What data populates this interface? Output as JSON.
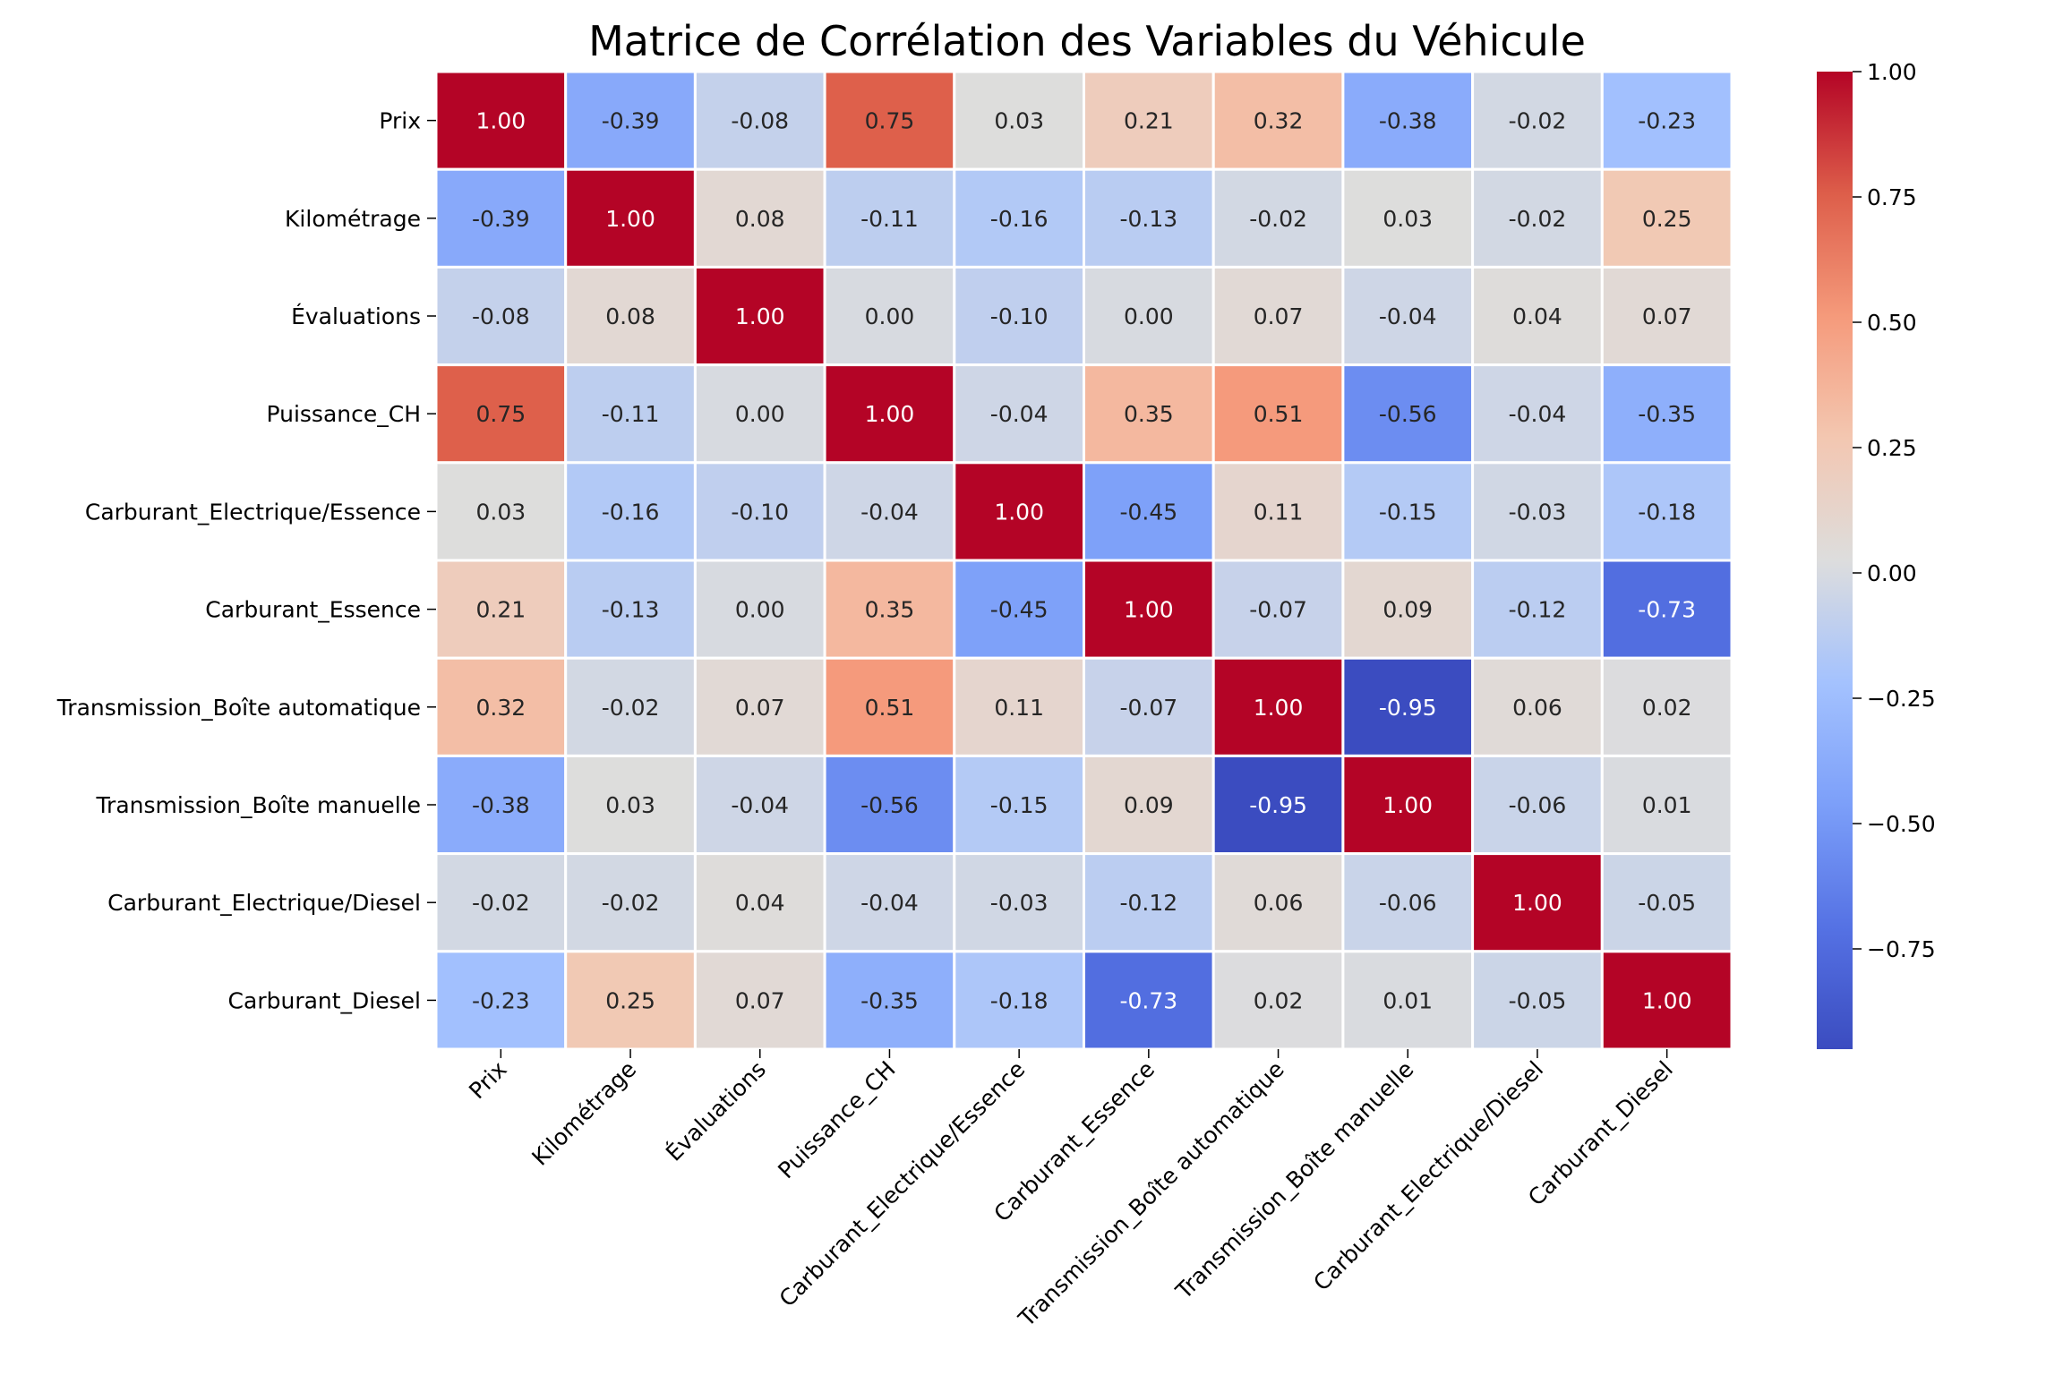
{
  "chart_data": {
    "type": "heatmap",
    "title": "Matrice de Corrélation des Variables du Véhicule",
    "xlabel": "",
    "ylabel": "",
    "labels": [
      "Prix",
      "Kilométrage",
      "Évaluations",
      "Puissance_CH",
      "Carburant_Electrique/Essence",
      "Carburant_Essence",
      "Transmission_Boîte automatique",
      "Transmission_Boîte manuelle",
      "Carburant_Electrique/Diesel",
      "Carburant_Diesel"
    ],
    "values": [
      [
        1.0,
        -0.39,
        -0.08,
        0.75,
        0.03,
        0.21,
        0.32,
        -0.38,
        -0.02,
        -0.23
      ],
      [
        -0.39,
        1.0,
        0.08,
        -0.11,
        -0.16,
        -0.13,
        -0.02,
        0.03,
        -0.02,
        0.25
      ],
      [
        -0.08,
        0.08,
        1.0,
        -0.0,
        -0.1,
        0.0,
        0.07,
        -0.04,
        0.04,
        0.07
      ],
      [
        0.75,
        -0.11,
        -0.0,
        1.0,
        -0.04,
        0.35,
        0.51,
        -0.56,
        -0.04,
        -0.35
      ],
      [
        0.03,
        -0.16,
        -0.1,
        -0.04,
        1.0,
        -0.45,
        0.11,
        -0.15,
        -0.03,
        -0.18
      ],
      [
        0.21,
        -0.13,
        0.0,
        0.35,
        -0.45,
        1.0,
        -0.07,
        0.09,
        -0.12,
        -0.73
      ],
      [
        0.32,
        -0.02,
        0.07,
        0.51,
        0.11,
        -0.07,
        1.0,
        -0.95,
        0.06,
        0.02
      ],
      [
        -0.38,
        0.03,
        -0.04,
        -0.56,
        -0.15,
        0.09,
        -0.95,
        1.0,
        -0.06,
        0.01
      ],
      [
        -0.02,
        -0.02,
        0.04,
        -0.04,
        -0.03,
        -0.12,
        0.06,
        -0.06,
        1.0,
        -0.05
      ],
      [
        -0.23,
        0.25,
        0.07,
        -0.35,
        -0.18,
        -0.73,
        0.02,
        0.01,
        -0.05,
        1.0
      ]
    ],
    "value_format": "0.00",
    "colormap": "coolwarm",
    "vmin": -0.95,
    "vmax": 1.0,
    "colorbar": {
      "ticks": [
        1.0,
        0.75,
        0.5,
        0.25,
        0.0,
        -0.25,
        -0.5,
        -0.75
      ],
      "tick_labels": [
        "1.00",
        "0.75",
        "0.50",
        "0.25",
        "0.00",
        "−0.25",
        "−0.50",
        "−0.75"
      ],
      "placement": "right"
    },
    "grid": false
  }
}
